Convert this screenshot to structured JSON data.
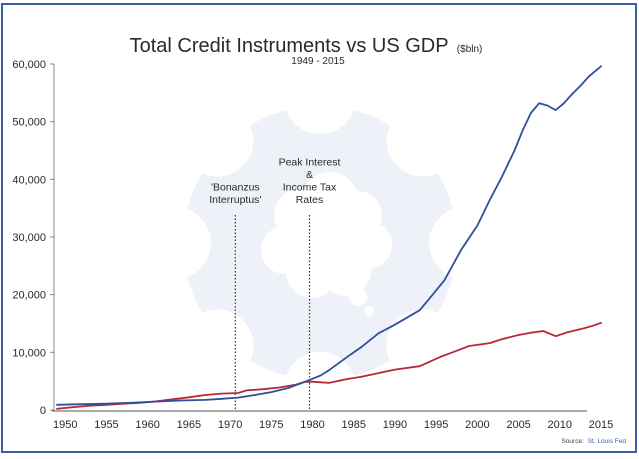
{
  "colors": {
    "frame": "#3b5ea8",
    "credit_series": "#2e4f9c",
    "gdp_series": "#b8283a",
    "watermark": "#eef1f7",
    "axis": "#888888"
  },
  "source": {
    "label": "Source:",
    "name": "St. Louis Fed"
  },
  "chart_data": {
    "type": "line",
    "title": "Total Credit Instruments vs US GDP",
    "title_unit": "($bln)",
    "subtitle": "1949 - 2015",
    "xlabel": "",
    "ylabel": "",
    "xlim": [
      1949,
      2015
    ],
    "ylim": [
      0,
      60000
    ],
    "grid": false,
    "legend": "none",
    "x_ticks": [
      "1950",
      "1955",
      "1960",
      "1965",
      "1970",
      "1975",
      "1980",
      "1985",
      "1990",
      "1995",
      "2000",
      "2005",
      "2010",
      "2015"
    ],
    "y_ticks": [
      "0",
      "10,000",
      "20,000",
      "30,000",
      "40,000",
      "50,000",
      "60,000"
    ],
    "series": [
      {
        "name": "Total Credit Instruments",
        "color": "#2e4f9c",
        "points": [
          [
            1949,
            900
          ],
          [
            1952,
            1000
          ],
          [
            1955,
            1100
          ],
          [
            1958,
            1250
          ],
          [
            1961,
            1450
          ],
          [
            1964,
            1650
          ],
          [
            1967,
            1750
          ],
          [
            1969,
            1950
          ],
          [
            1971,
            2150
          ],
          [
            1973,
            2600
          ],
          [
            1975,
            3100
          ],
          [
            1977,
            3800
          ],
          [
            1979,
            4850
          ],
          [
            1981,
            6000
          ],
          [
            1982,
            6900
          ],
          [
            1984.5,
            9500
          ],
          [
            1986,
            11000
          ],
          [
            1988,
            13300
          ],
          [
            1990,
            14800
          ],
          [
            1993,
            17300
          ],
          [
            1994,
            19000
          ],
          [
            1996,
            22500
          ],
          [
            1998,
            27700
          ],
          [
            2000,
            32000
          ],
          [
            2001.5,
            36400
          ],
          [
            2003,
            40500
          ],
          [
            2004.5,
            45000
          ],
          [
            2005.5,
            48500
          ],
          [
            2006.5,
            51500
          ],
          [
            2007.5,
            53200
          ],
          [
            2008.5,
            52800
          ],
          [
            2009.5,
            52000
          ],
          [
            2010.5,
            53200
          ],
          [
            2011.5,
            54800
          ],
          [
            2012.5,
            56200
          ],
          [
            2013.5,
            57800
          ],
          [
            2015,
            59600
          ]
        ]
      },
      {
        "name": "US GDP",
        "color": "#b8283a",
        "points": [
          [
            1949,
            200
          ],
          [
            1951,
            500
          ],
          [
            1953,
            750
          ],
          [
            1955,
            900
          ],
          [
            1957,
            1100
          ],
          [
            1959,
            1250
          ],
          [
            1961,
            1500
          ],
          [
            1963,
            1850
          ],
          [
            1965,
            2200
          ],
          [
            1967,
            2600
          ],
          [
            1969,
            2850
          ],
          [
            1971,
            2950
          ],
          [
            1972,
            3400
          ],
          [
            1974,
            3600
          ],
          [
            1976,
            3900
          ],
          [
            1978,
            4400
          ],
          [
            1979,
            4850
          ],
          [
            1980,
            4900
          ],
          [
            1981,
            4800
          ],
          [
            1982,
            4700
          ],
          [
            1984,
            5300
          ],
          [
            1986,
            5800
          ],
          [
            1988,
            6400
          ],
          [
            1990,
            7000
          ],
          [
            1993,
            7600
          ],
          [
            1995.5,
            9200
          ],
          [
            1997,
            10000
          ],
          [
            1999,
            11100
          ],
          [
            2001.5,
            11600
          ],
          [
            2003,
            12300
          ],
          [
            2005,
            13000
          ],
          [
            2006.5,
            13400
          ],
          [
            2008,
            13700
          ],
          [
            2009.5,
            12800
          ],
          [
            2011,
            13500
          ],
          [
            2013,
            14200
          ],
          [
            2014,
            14600
          ],
          [
            2015,
            15100
          ]
        ]
      }
    ],
    "annotations": [
      {
        "x": 1971,
        "lines": [
          "'Bonanzus",
          "Interruptus'"
        ]
      },
      {
        "x": 1980,
        "lines": [
          "Peak Interest",
          "&",
          "Income Tax",
          "Rates"
        ]
      }
    ]
  }
}
